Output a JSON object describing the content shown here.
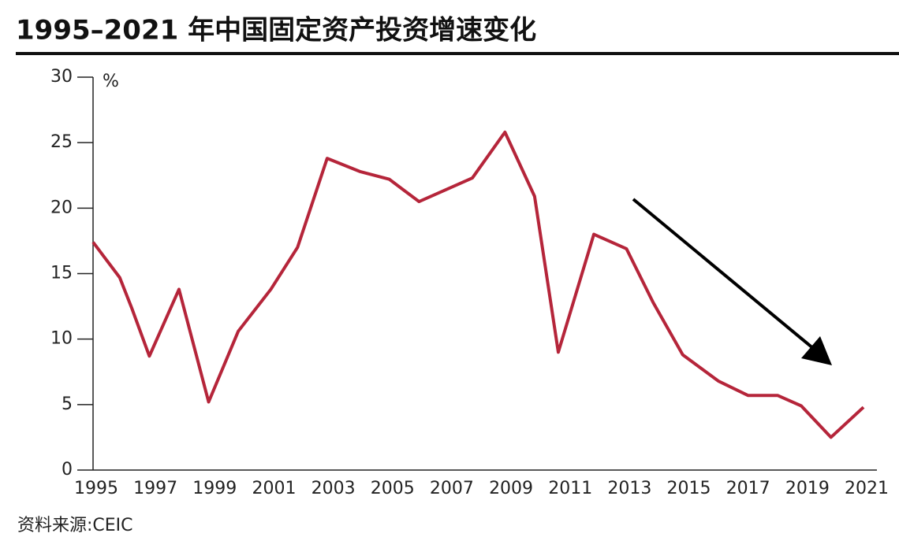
{
  "chart_data": {
    "type": "line",
    "title": "1995–2021 年中国固定资产投资增速变化",
    "y_unit": "%",
    "source": "资料来源:CEIC",
    "x": [
      1995,
      1995.9,
      1996.3,
      1996.9,
      1997.9,
      1998.9,
      1999.4,
      1999.9,
      2001.0,
      2001.9,
      2002.9,
      2004.0,
      2005.0,
      2006.0,
      2006.9,
      2007.8,
      2008.9,
      2009.9,
      2010.7,
      2011.9,
      2013.0,
      2013.9,
      2014.9,
      2016.1,
      2017.1,
      2018.1,
      2018.9,
      2019.9,
      2021
    ],
    "series": [
      {
        "color": "#b5253a",
        "values": [
          17.4,
          14.7,
          12.4,
          8.7,
          13.8,
          5.2,
          7.9,
          10.6,
          13.8,
          17.0,
          23.8,
          22.8,
          22.2,
          20.5,
          21.4,
          22.3,
          25.8,
          20.9,
          9.0,
          18.0,
          16.9,
          12.8,
          8.8,
          6.8,
          5.7,
          5.7,
          4.9,
          2.5,
          4.8
        ]
      }
    ],
    "xlim": [
      1995,
      2021
    ],
    "xticks": [
      1995,
      1997,
      1999,
      2001,
      2003,
      2005,
      2007,
      2009,
      2011,
      2013,
      2015,
      2017,
      2019,
      2021
    ],
    "ylim": [
      0,
      30
    ],
    "yticks": [
      0,
      5,
      10,
      15,
      20,
      25,
      30
    ]
  }
}
